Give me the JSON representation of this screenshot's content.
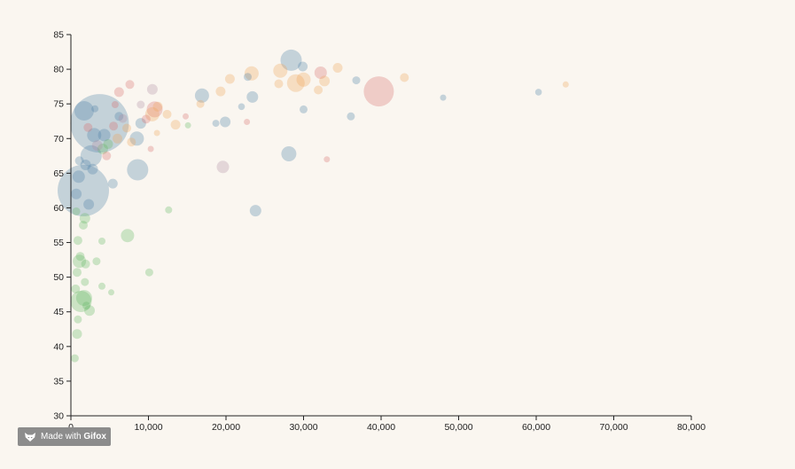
{
  "chart_data": {
    "type": "scatter",
    "title": "",
    "xlabel": "",
    "ylabel": "",
    "xlim": [
      0,
      80000
    ],
    "ylim": [
      30,
      85
    ],
    "x_ticks": [
      0,
      10000,
      20000,
      30000,
      40000,
      50000,
      60000,
      70000,
      80000
    ],
    "x_tick_labels": [
      "0",
      "10,000",
      "20,000",
      "30,000",
      "40,000",
      "50,000",
      "60,000",
      "70,000",
      "80,000"
    ],
    "y_ticks": [
      30,
      35,
      40,
      45,
      50,
      55,
      60,
      65,
      70,
      75,
      80,
      85
    ],
    "y_tick_labels": [
      "30",
      "35",
      "40",
      "45",
      "50",
      "55",
      "60",
      "65",
      "70",
      "75",
      "80",
      "85"
    ],
    "grid": false,
    "legend": "none",
    "size_encoding": "bubble area proportional to population (relative, unlabeled)",
    "colors": {
      "blue": "#4a7fa6",
      "orange": "#f0a155",
      "red": "#d86a6a",
      "green": "#5fb560",
      "purple": "#b08ba3"
    },
    "points": [
      {
        "x": 3700,
        "y": 72.2,
        "size": 33,
        "color": "blue"
      },
      {
        "x": 1600,
        "y": 62.5,
        "size": 29,
        "color": "blue"
      },
      {
        "x": 39700,
        "y": 76.8,
        "size": 17,
        "color": "red"
      },
      {
        "x": 8600,
        "y": 65.5,
        "size": 12,
        "color": "blue"
      },
      {
        "x": 28400,
        "y": 81.3,
        "size": 12,
        "color": "blue"
      },
      {
        "x": 1700,
        "y": 74.0,
        "size": 11,
        "color": "blue"
      },
      {
        "x": 2600,
        "y": 67.5,
        "size": 12,
        "color": "blue"
      },
      {
        "x": 1300,
        "y": 46.5,
        "size": 12,
        "color": "green"
      },
      {
        "x": 23300,
        "y": 79.4,
        "size": 8,
        "color": "orange"
      },
      {
        "x": 27000,
        "y": 79.8,
        "size": 8,
        "color": "orange"
      },
      {
        "x": 29000,
        "y": 78.0,
        "size": 10,
        "color": "orange"
      },
      {
        "x": 30000,
        "y": 78.5,
        "size": 8,
        "color": "orange"
      },
      {
        "x": 10800,
        "y": 74.2,
        "size": 9,
        "color": "red"
      },
      {
        "x": 10500,
        "y": 73.5,
        "size": 8,
        "color": "orange"
      },
      {
        "x": 16900,
        "y": 76.2,
        "size": 8,
        "color": "blue"
      },
      {
        "x": 28100,
        "y": 67.8,
        "size": 8.5,
        "color": "blue"
      },
      {
        "x": 7300,
        "y": 56.0,
        "size": 7.5,
        "color": "green"
      },
      {
        "x": 1100,
        "y": 52.3,
        "size": 7.5,
        "color": "green"
      },
      {
        "x": 1700,
        "y": 47.0,
        "size": 9,
        "color": "green"
      },
      {
        "x": 3000,
        "y": 70.5,
        "size": 8,
        "color": "blue"
      },
      {
        "x": 4300,
        "y": 70.5,
        "size": 7,
        "color": "blue"
      },
      {
        "x": 8500,
        "y": 70.0,
        "size": 8,
        "color": "blue"
      },
      {
        "x": 2300,
        "y": 60.5,
        "size": 6,
        "color": "blue"
      },
      {
        "x": 1000,
        "y": 64.5,
        "size": 7,
        "color": "blue"
      },
      {
        "x": 700,
        "y": 62.0,
        "size": 6,
        "color": "blue"
      },
      {
        "x": 5400,
        "y": 63.5,
        "size": 5.5,
        "color": "blue"
      },
      {
        "x": 4100,
        "y": 68.5,
        "size": 6,
        "color": "green"
      },
      {
        "x": 4800,
        "y": 69.2,
        "size": 5.5,
        "color": "green"
      },
      {
        "x": 6000,
        "y": 70.0,
        "size": 5.5,
        "color": "orange"
      },
      {
        "x": 6200,
        "y": 73.2,
        "size": 5,
        "color": "blue"
      },
      {
        "x": 7200,
        "y": 71.5,
        "size": 5,
        "color": "orange"
      },
      {
        "x": 7800,
        "y": 69.5,
        "size": 5,
        "color": "orange"
      },
      {
        "x": 9000,
        "y": 72.2,
        "size": 6,
        "color": "blue"
      },
      {
        "x": 9700,
        "y": 72.8,
        "size": 5,
        "color": "red"
      },
      {
        "x": 10500,
        "y": 77.1,
        "size": 6,
        "color": "purple"
      },
      {
        "x": 11200,
        "y": 74.6,
        "size": 5.5,
        "color": "orange"
      },
      {
        "x": 12400,
        "y": 73.5,
        "size": 5,
        "color": "orange"
      },
      {
        "x": 13500,
        "y": 72.0,
        "size": 5.5,
        "color": "orange"
      },
      {
        "x": 6200,
        "y": 76.7,
        "size": 5.5,
        "color": "red"
      },
      {
        "x": 7600,
        "y": 77.8,
        "size": 5,
        "color": "red"
      },
      {
        "x": 19600,
        "y": 65.9,
        "size": 7,
        "color": "purple"
      },
      {
        "x": 19900,
        "y": 72.4,
        "size": 6,
        "color": "blue"
      },
      {
        "x": 23400,
        "y": 76.0,
        "size": 6.5,
        "color": "blue"
      },
      {
        "x": 23800,
        "y": 59.6,
        "size": 6.5,
        "color": "blue"
      },
      {
        "x": 32200,
        "y": 79.5,
        "size": 7,
        "color": "red"
      },
      {
        "x": 32700,
        "y": 78.3,
        "size": 6,
        "color": "orange"
      },
      {
        "x": 31900,
        "y": 77.0,
        "size": 5,
        "color": "orange"
      },
      {
        "x": 29900,
        "y": 80.4,
        "size": 5.5,
        "color": "blue"
      },
      {
        "x": 34400,
        "y": 80.2,
        "size": 5.5,
        "color": "orange"
      },
      {
        "x": 26800,
        "y": 77.9,
        "size": 5,
        "color": "orange"
      },
      {
        "x": 20500,
        "y": 78.6,
        "size": 5.5,
        "color": "orange"
      },
      {
        "x": 19300,
        "y": 76.8,
        "size": 5.5,
        "color": "orange"
      },
      {
        "x": 36100,
        "y": 73.2,
        "size": 4.5,
        "color": "blue"
      },
      {
        "x": 36800,
        "y": 78.4,
        "size": 4.5,
        "color": "blue"
      },
      {
        "x": 43000,
        "y": 78.8,
        "size": 5,
        "color": "orange"
      },
      {
        "x": 30000,
        "y": 74.2,
        "size": 4.5,
        "color": "blue"
      },
      {
        "x": 22800,
        "y": 78.9,
        "size": 4.5,
        "color": "blue"
      },
      {
        "x": 22000,
        "y": 74.6,
        "size": 3.8,
        "color": "blue"
      },
      {
        "x": 22700,
        "y": 72.4,
        "size": 3.5,
        "color": "red"
      },
      {
        "x": 16700,
        "y": 75.0,
        "size": 4.5,
        "color": "orange"
      },
      {
        "x": 18700,
        "y": 72.2,
        "size": 4,
        "color": "blue"
      },
      {
        "x": 14800,
        "y": 73.2,
        "size": 3.5,
        "color": "red"
      },
      {
        "x": 15100,
        "y": 71.9,
        "size": 3.5,
        "color": "green"
      },
      {
        "x": 11100,
        "y": 70.8,
        "size": 3.5,
        "color": "orange"
      },
      {
        "x": 10300,
        "y": 68.5,
        "size": 3.5,
        "color": "red"
      },
      {
        "x": 12600,
        "y": 59.7,
        "size": 4,
        "color": "green"
      },
      {
        "x": 10100,
        "y": 50.7,
        "size": 4.5,
        "color": "green"
      },
      {
        "x": 5200,
        "y": 47.8,
        "size": 3.5,
        "color": "green"
      },
      {
        "x": 4000,
        "y": 48.7,
        "size": 4,
        "color": "green"
      },
      {
        "x": 3300,
        "y": 52.3,
        "size": 4.5,
        "color": "green"
      },
      {
        "x": 4000,
        "y": 55.2,
        "size": 4,
        "color": "green"
      },
      {
        "x": 2400,
        "y": 45.2,
        "size": 6,
        "color": "green"
      },
      {
        "x": 800,
        "y": 41.8,
        "size": 5.5,
        "color": "green"
      },
      {
        "x": 500,
        "y": 38.3,
        "size": 4.5,
        "color": "green"
      },
      {
        "x": 900,
        "y": 43.9,
        "size": 4.5,
        "color": "green"
      },
      {
        "x": 600,
        "y": 48.3,
        "size": 5,
        "color": "green"
      },
      {
        "x": 800,
        "y": 50.7,
        "size": 5,
        "color": "green"
      },
      {
        "x": 1200,
        "y": 53.0,
        "size": 5,
        "color": "green"
      },
      {
        "x": 1900,
        "y": 51.9,
        "size": 5,
        "color": "green"
      },
      {
        "x": 1800,
        "y": 49.3,
        "size": 4.5,
        "color": "green"
      },
      {
        "x": 900,
        "y": 55.3,
        "size": 5,
        "color": "green"
      },
      {
        "x": 1600,
        "y": 57.5,
        "size": 5,
        "color": "green"
      },
      {
        "x": 1800,
        "y": 58.5,
        "size": 6,
        "color": "green"
      },
      {
        "x": 700,
        "y": 59.5,
        "size": 4.5,
        "color": "green"
      },
      {
        "x": 2000,
        "y": 45.9,
        "size": 4.5,
        "color": "green"
      },
      {
        "x": 2800,
        "y": 65.6,
        "size": 6,
        "color": "blue"
      },
      {
        "x": 1900,
        "y": 66.2,
        "size": 6,
        "color": "blue"
      },
      {
        "x": 1100,
        "y": 66.8,
        "size": 5,
        "color": "blue"
      },
      {
        "x": 3400,
        "y": 69.0,
        "size": 6,
        "color": "purple"
      },
      {
        "x": 4600,
        "y": 67.5,
        "size": 5,
        "color": "red"
      },
      {
        "x": 5500,
        "y": 71.8,
        "size": 5,
        "color": "red"
      },
      {
        "x": 6700,
        "y": 72.9,
        "size": 5,
        "color": "purple"
      },
      {
        "x": 9000,
        "y": 74.9,
        "size": 4.5,
        "color": "purple"
      },
      {
        "x": 2200,
        "y": 71.6,
        "size": 5,
        "color": "red"
      },
      {
        "x": 3100,
        "y": 74.3,
        "size": 4,
        "color": "blue"
      },
      {
        "x": 5700,
        "y": 74.9,
        "size": 4,
        "color": "red"
      },
      {
        "x": 33000,
        "y": 67.0,
        "size": 3.5,
        "color": "red"
      },
      {
        "x": 48000,
        "y": 75.9,
        "size": 3.5,
        "color": "blue"
      },
      {
        "x": 60300,
        "y": 76.7,
        "size": 3.8,
        "color": "blue"
      },
      {
        "x": 63800,
        "y": 77.8,
        "size": 3.5,
        "color": "orange"
      }
    ]
  },
  "badge": {
    "prefix": "Made with ",
    "brand": "Gifox"
  }
}
